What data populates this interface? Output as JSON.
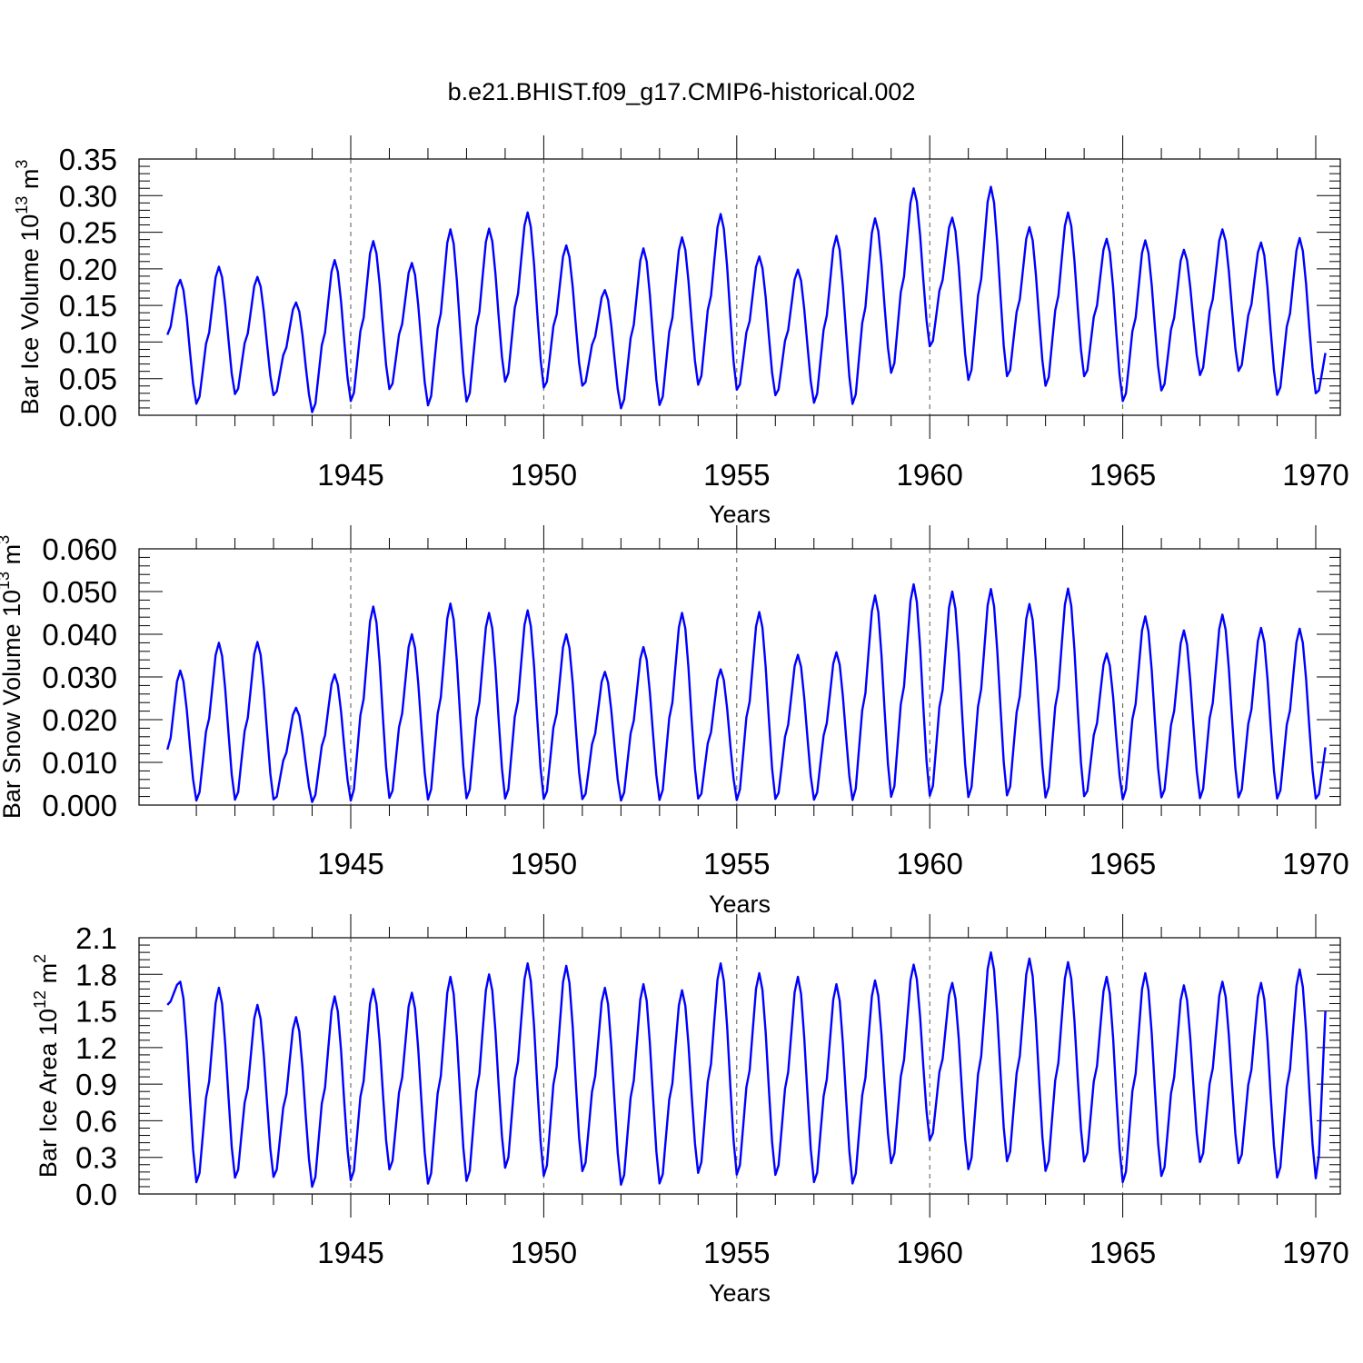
{
  "figure_title": "b.e21.BHIST.f09_g17.CMIP6-historical.002",
  "chart_data": [
    {
      "type": "line",
      "ylabel": "Bar Ice Volume 10",
      "ylabel_sup": "13",
      "ylabel_unit": " m",
      "ylabel_unit_sup": "3",
      "xlabel": "Years",
      "xlim": [
        1940,
        1970
      ],
      "ylim": [
        0,
        0.35
      ],
      "yticks": [
        "0.00",
        "0.05",
        "0.10",
        "0.15",
        "0.20",
        "0.25",
        "0.30",
        "0.35"
      ],
      "xticks": [
        "1945",
        "1950",
        "1955",
        "1960",
        "1965",
        "1970"
      ],
      "series_color": "#0000ff",
      "maxima": [
        0.185,
        0.203,
        0.189,
        0.154,
        0.212,
        0.238,
        0.208,
        0.254,
        0.255,
        0.277,
        0.232,
        0.171,
        0.228,
        0.243,
        0.275,
        0.217,
        0.199,
        0.245,
        0.269,
        0.31,
        0.27,
        0.312,
        0.257,
        0.277,
        0.241,
        0.239,
        0.226,
        0.254,
        0.236,
        0.242
      ],
      "minima": [
        0.011,
        0.024,
        0.023,
        0.0,
        0.014,
        0.03,
        0.008,
        0.012,
        0.04,
        0.031,
        0.035,
        0.005,
        0.008,
        0.036,
        0.028,
        0.022,
        0.012,
        0.009,
        0.052,
        0.088,
        0.042,
        0.046,
        0.034,
        0.047,
        0.013,
        0.028,
        0.05,
        0.055,
        0.022,
        0.024
      ],
      "start_value": 0.11,
      "end_value": 0.085
    },
    {
      "type": "line",
      "ylabel": "Bar Snow Volume 10",
      "ylabel_sup": "13",
      "ylabel_unit": " m",
      "ylabel_unit_sup": "3",
      "xlabel": "Years",
      "xlim": [
        1940,
        1970
      ],
      "ylim": [
        0,
        0.06
      ],
      "yticks": [
        "0.000",
        "0.010",
        "0.020",
        "0.030",
        "0.040",
        "0.050",
        "0.060"
      ],
      "xticks": [
        "1945",
        "1950",
        "1955",
        "1960",
        "1965",
        "1970"
      ],
      "series_color": "#0000ff",
      "maxima": [
        0.0315,
        0.038,
        0.0382,
        0.0228,
        0.0306,
        0.0465,
        0.04,
        0.0472,
        0.045,
        0.0456,
        0.04,
        0.0312,
        0.037,
        0.045,
        0.0318,
        0.0452,
        0.0352,
        0.0358,
        0.0491,
        0.0517,
        0.05,
        0.0506,
        0.0471,
        0.0507,
        0.0355,
        0.0442,
        0.0409,
        0.0446,
        0.0415,
        0.0413
      ],
      "minima": [
        0.0002,
        0.0002,
        0.0003,
        0.0001,
        0.0002,
        0.0004,
        0.0002,
        0.0003,
        0.0003,
        0.0002,
        0.0003,
        0.0002,
        0.0002,
        0.0003,
        0.0003,
        0.0002,
        0.0003,
        0.0002,
        0.0006,
        0.0008,
        0.0005,
        0.0009,
        0.0005,
        0.0007,
        0.0004,
        0.0006,
        0.0005,
        0.0006,
        0.0004,
        0.0004
      ],
      "start_value": 0.013,
      "end_value": 0.0135
    },
    {
      "type": "line",
      "ylabel": "Bar Ice Area 10",
      "ylabel_sup": "12",
      "ylabel_unit": " m",
      "ylabel_unit_sup": "2",
      "xlabel": "Years",
      "xlim": [
        1940,
        1970
      ],
      "ylim": [
        0,
        2.1
      ],
      "yticks": [
        "0.0",
        "0.3",
        "0.6",
        "0.9",
        "1.2",
        "1.5",
        "1.8",
        "2.1"
      ],
      "xticks": [
        "1945",
        "1950",
        "1955",
        "1960",
        "1965",
        "1970"
      ],
      "series_color": "#0000ff",
      "maxima": [
        1.74,
        1.69,
        1.55,
        1.45,
        1.62,
        1.68,
        1.65,
        1.78,
        1.8,
        1.89,
        1.87,
        1.69,
        1.72,
        1.67,
        1.89,
        1.81,
        1.78,
        1.72,
        1.75,
        1.88,
        1.73,
        1.98,
        1.93,
        1.9,
        1.78,
        1.81,
        1.71,
        1.74,
        1.73,
        1.84
      ],
      "minima": [
        0.05,
        0.09,
        0.1,
        0.02,
        0.07,
        0.16,
        0.04,
        0.06,
        0.17,
        0.1,
        0.14,
        0.03,
        0.04,
        0.13,
        0.11,
        0.11,
        0.05,
        0.04,
        0.21,
        0.4,
        0.16,
        0.22,
        0.14,
        0.22,
        0.05,
        0.1,
        0.22,
        0.21,
        0.09,
        0.08
      ],
      "start_value": 1.55,
      "end_value": 1.5
    }
  ]
}
